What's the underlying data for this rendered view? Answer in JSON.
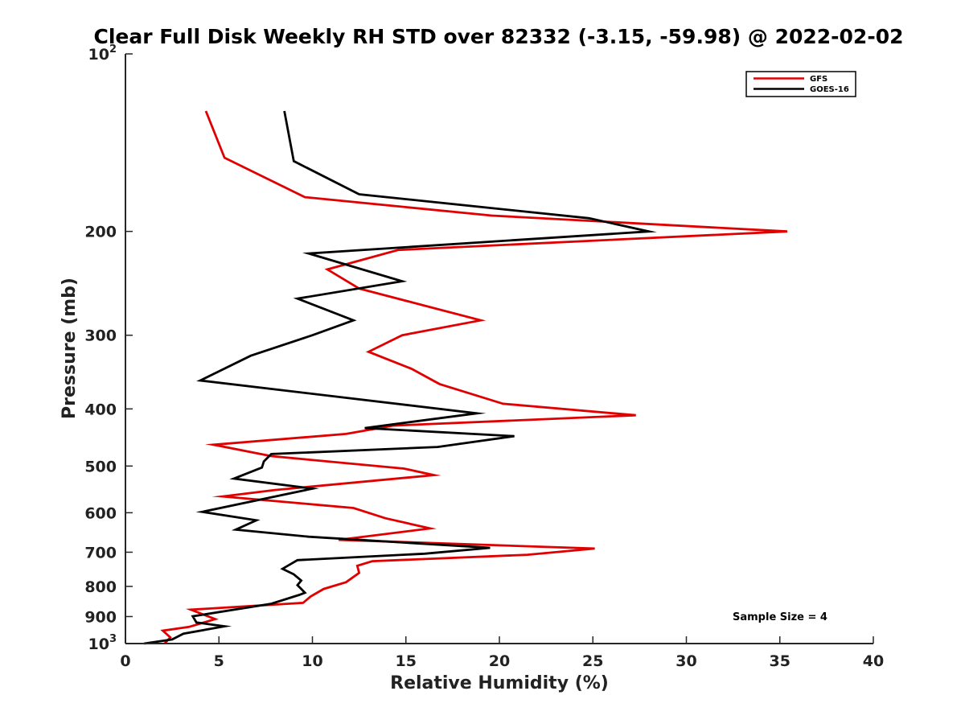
{
  "chart_data": {
    "type": "line",
    "title": "Clear Full Disk Weekly RH STD over 82332 (-3.15, -59.98) @ 2022-02-02",
    "xlabel": "Relative Humidity (%)",
    "ylabel": "Pressure (mb)",
    "xlim": [
      0,
      40
    ],
    "ylim": [
      100,
      1000
    ],
    "yscale": "log",
    "y_reversed": true,
    "grid": false,
    "legend_position": "top-right",
    "x_ticks": [
      0,
      5,
      10,
      15,
      20,
      25,
      30,
      35,
      40
    ],
    "y_ticks": [
      {
        "value": 100,
        "base": "10",
        "exp": "2"
      },
      {
        "value": 200,
        "label": "200"
      },
      {
        "value": 300,
        "label": "300"
      },
      {
        "value": 400,
        "label": "400"
      },
      {
        "value": 500,
        "label": "500"
      },
      {
        "value": 600,
        "label": "600"
      },
      {
        "value": 700,
        "label": "700"
      },
      {
        "value": 800,
        "label": "800"
      },
      {
        "value": 900,
        "label": "900"
      },
      {
        "value": 1000,
        "base": "10",
        "exp": "3"
      }
    ],
    "annotation": "Sample Size = 4",
    "series": [
      {
        "name": "GFS",
        "color": "#e00000",
        "points": [
          [
            4.3,
            125
          ],
          [
            5.3,
            150
          ],
          [
            9.6,
            175
          ],
          [
            19.6,
            188
          ],
          [
            35.4,
            200
          ],
          [
            14.6,
            215
          ],
          [
            10.8,
            232
          ],
          [
            12.5,
            250
          ],
          [
            19.0,
            283
          ],
          [
            14.8,
            300
          ],
          [
            13.0,
            320
          ],
          [
            15.3,
            342
          ],
          [
            16.8,
            363
          ],
          [
            20.2,
            392
          ],
          [
            27.3,
            410
          ],
          [
            14.3,
            427
          ],
          [
            11.8,
            441
          ],
          [
            4.7,
            460
          ],
          [
            7.8,
            481
          ],
          [
            14.9,
            505
          ],
          [
            16.5,
            518
          ],
          [
            8.0,
            549
          ],
          [
            5.2,
            563
          ],
          [
            12.2,
            589
          ],
          [
            13.9,
            613
          ],
          [
            16.3,
            638
          ],
          [
            11.4,
            667
          ],
          [
            25.1,
            690
          ],
          [
            21.5,
            707
          ],
          [
            13.2,
            725
          ],
          [
            12.4,
            738
          ],
          [
            12.5,
            759
          ],
          [
            11.8,
            787
          ],
          [
            10.6,
            808
          ],
          [
            9.9,
            832
          ],
          [
            9.5,
            853
          ],
          [
            3.5,
            876
          ],
          [
            4.8,
            909
          ],
          [
            3.4,
            937
          ],
          [
            2.0,
            951
          ],
          [
            2.4,
            976
          ],
          [
            2.1,
            1000
          ]
        ]
      },
      {
        "name": "GOES-16",
        "color": "#000000",
        "points": [
          [
            8.5,
            125
          ],
          [
            9.0,
            152
          ],
          [
            12.5,
            173
          ],
          [
            24.8,
            190
          ],
          [
            28.0,
            200
          ],
          [
            9.8,
            218
          ],
          [
            14.8,
            243
          ],
          [
            9.2,
            260
          ],
          [
            12.2,
            283
          ],
          [
            10.0,
            300
          ],
          [
            6.7,
            325
          ],
          [
            4.0,
            358
          ],
          [
            18.8,
            407
          ],
          [
            12.8,
            431
          ],
          [
            20.8,
            445
          ],
          [
            16.7,
            464
          ],
          [
            7.8,
            477
          ],
          [
            7.4,
            491
          ],
          [
            7.3,
            503
          ],
          [
            5.8,
            525
          ],
          [
            10.0,
            546
          ],
          [
            4.1,
            598
          ],
          [
            7.0,
            618
          ],
          [
            5.9,
            641
          ],
          [
            9.8,
            659
          ],
          [
            19.5,
            688
          ],
          [
            16.0,
            704
          ],
          [
            9.2,
            722
          ],
          [
            8.4,
            747
          ],
          [
            9.0,
            763
          ],
          [
            9.4,
            782
          ],
          [
            9.2,
            796
          ],
          [
            9.4,
            808
          ],
          [
            9.6,
            820
          ],
          [
            9.3,
            827
          ],
          [
            7.8,
            856
          ],
          [
            3.6,
            899
          ],
          [
            3.8,
            921
          ],
          [
            5.3,
            935
          ],
          [
            3.1,
            962
          ],
          [
            2.5,
            984
          ],
          [
            1.0,
            1000
          ]
        ]
      }
    ]
  }
}
